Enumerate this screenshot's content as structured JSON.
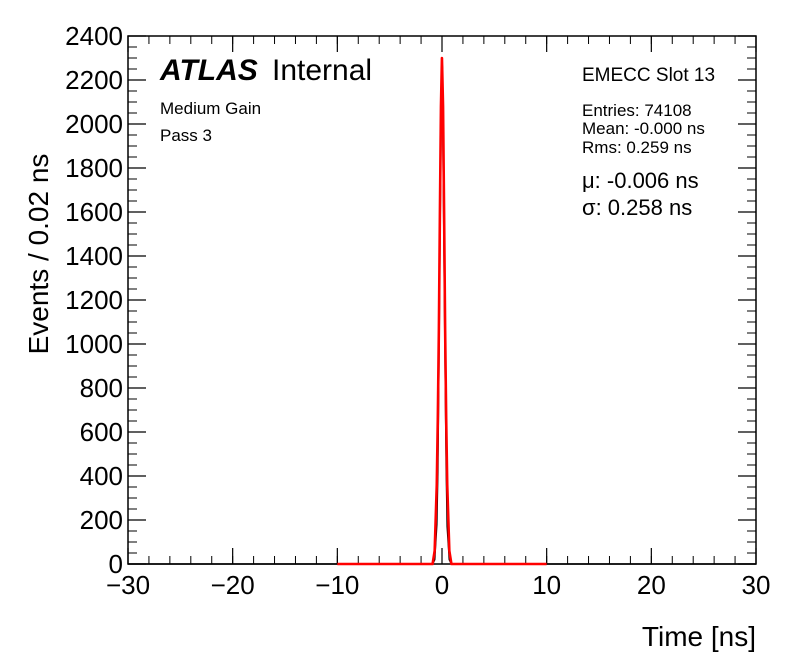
{
  "chart_data": {
    "type": "line",
    "xlabel": "Time [ns]",
    "ylabel": "Events / 0.02 ns",
    "xlim": [
      -30,
      30
    ],
    "ylim": [
      0,
      2400
    ],
    "x_ticks": [
      -30,
      -20,
      -10,
      0,
      10,
      20,
      30
    ],
    "x_tick_labels": [
      "−30",
      "−20",
      "−10",
      "0",
      "10",
      "20",
      "30"
    ],
    "y_ticks": [
      0,
      200,
      400,
      600,
      800,
      1000,
      1200,
      1400,
      1600,
      1800,
      2000,
      2200,
      2400
    ],
    "y_tick_labels": [
      "0",
      "200",
      "400",
      "600",
      "800",
      "1000",
      "1200",
      "1400",
      "1600",
      "1800",
      "2000",
      "2200",
      "2400"
    ],
    "grid": false,
    "annotations": {
      "atlas": "ATLAS",
      "internal": "Internal",
      "gain": "Medium Gain",
      "pass": "Pass 3",
      "slot": "EMECC Slot 13",
      "entries": "Entries: 74108",
      "mean": "Mean: -0.000 ns",
      "rms": "Rms: 0.259 ns",
      "fit_mu": "μ: -0.006 ns",
      "fit_sigma": "σ: 0.258 ns"
    },
    "series": [
      {
        "color": "#000000",
        "style": "histogram",
        "x": [
          -30,
          -0.9,
          -0.7,
          -0.5,
          -0.4,
          -0.3,
          -0.2,
          -0.1,
          0.0,
          0.05,
          0.1,
          0.2,
          0.3,
          0.4,
          0.5,
          0.7,
          0.9,
          30
        ],
        "y": [
          0,
          0,
          20,
          180,
          420,
          900,
          1450,
          1950,
          2280,
          2250,
          1900,
          1400,
          900,
          450,
          170,
          20,
          0,
          0
        ]
      },
      {
        "color": "#ff0000",
        "style": "fit",
        "x": [
          -10,
          -0.9,
          -0.7,
          -0.5,
          -0.4,
          -0.3,
          -0.2,
          -0.1,
          -0.006,
          0.1,
          0.2,
          0.3,
          0.4,
          0.5,
          0.7,
          0.9,
          10
        ],
        "y": [
          0,
          0,
          60,
          360,
          660,
          1060,
          1600,
          2080,
          2300,
          2080,
          1600,
          1060,
          660,
          360,
          60,
          0,
          0
        ]
      }
    ]
  }
}
